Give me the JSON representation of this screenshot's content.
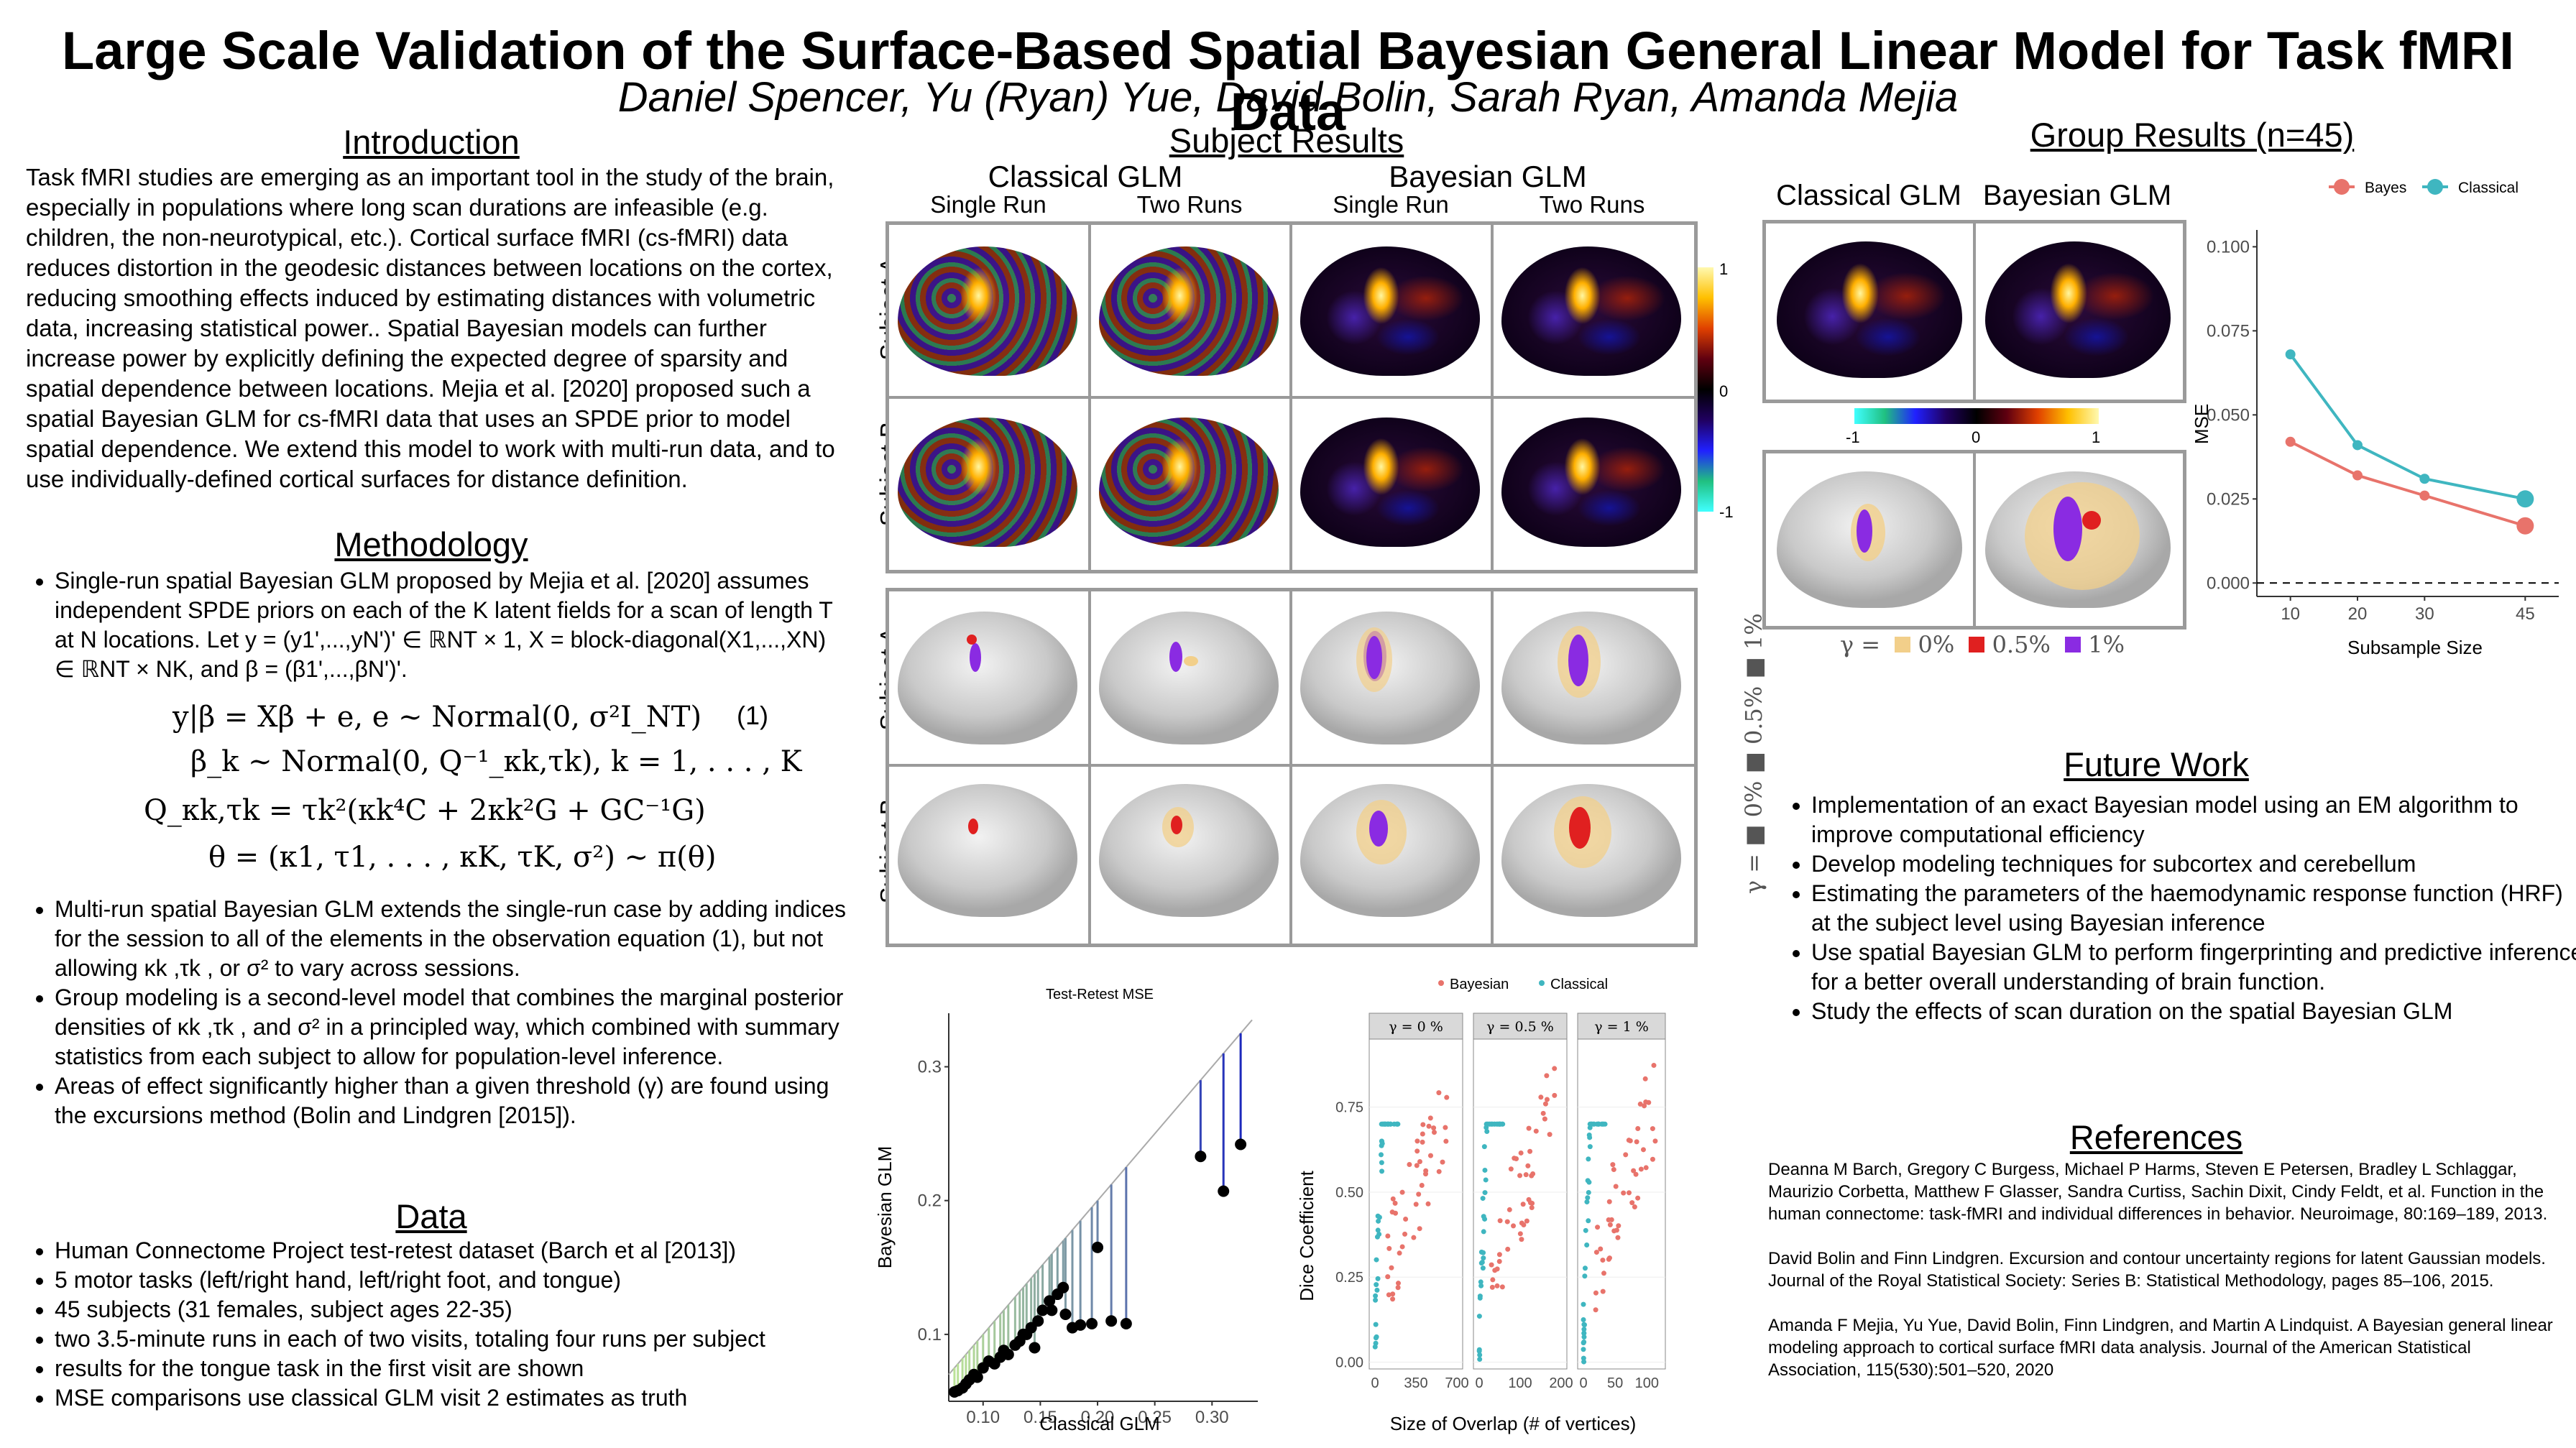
{
  "title": "Large Scale Validation of the Surface-Based Spatial Bayesian General Linear Model for Task fMRI Data",
  "authors": "Daniel Spencer, Yu (Ryan) Yue, David Bolin, Sarah Ryan, Amanda Mejia",
  "introduction": {
    "heading": "Introduction",
    "text": "Task fMRI studies are emerging as an important tool in the study of the brain, especially in populations where long scan durations are infeasible (e.g. children, the non-neurotypical, etc.). Cortical surface fMRI (cs-fMRI) data reduces distortion in the geodesic distances between locations on the cortex, reducing smoothing effects induced by estimating distances with volumetric data, increasing statistical power.. Spatial Bayesian models can further increase power by explicitly defining the expected degree of sparsity and spatial dependence between locations. Mejia et al. [2020] proposed such a spatial Bayesian GLM for cs-fMRI data that uses an SPDE prior to model spatial dependence. We extend this model to work with multi-run data, and to use individually-defined cortical surfaces for distance definition."
  },
  "methodology": {
    "heading": "Methodology",
    "bullet1": "Single-run spatial Bayesian GLM proposed by Mejia et al. [2020] assumes independent SPDE priors on each of the K latent fields for a scan of length T at N locations. Let y = (y1',...,yN')' ∈ ℝNT × 1,  X = block-diagonal(X1,...,XN) ∈ ℝNT × NK, and β = (β1',...,βN')'.",
    "eq1": "y|β = Xβ + e,    e ~ Normal(0, σ²I_NT)",
    "eq1_num": "(1)",
    "eq2": "β_k ~ Normal(0, Q⁻¹_κk,τk),    k = 1, . . . , K",
    "eq3": "Q_κk,τk = τk²(κk⁴C + 2κk²G + GC⁻¹G)",
    "eq4": "θ = (κ1, τ1, . . . , κK, τK, σ²) ~ π(θ)",
    "bullet2": "Multi-run spatial Bayesian GLM extends the single-run case by adding indices for the session to all of the elements in the observation equation (1), but not allowing κk ,τk , or σ² to vary across sessions.",
    "bullet3": "Group modeling is a second-level model that combines the marginal posterior densities of κk ,τk , and σ² in a principled way, which combined with summary statistics from each subject to allow for population-level inference.",
    "bullet4": "Areas of effect significantly higher than a given threshold (γ) are found using the excursions method (Bolin and Lindgren [2015])."
  },
  "data_section": {
    "heading": "Data",
    "items": [
      "Human Connectome Project test-retest dataset (Barch et al [2013])",
      "5 motor tasks (left/right hand, left/right foot, and tongue)",
      "45 subjects (31 females, subject ages 22-35)",
      "two 3.5-minute runs in each of two visits, totaling four runs per subject",
      "results for the tongue task in the first visit are shown",
      "MSE comparisons use classical GLM visit 2 estimates as truth"
    ]
  },
  "subject_results": {
    "heading": "Subject Results",
    "classical": "Classical GLM",
    "bayesian": "Bayesian GLM",
    "single_run": "Single Run",
    "two_runs": "Two Runs",
    "subject_a": "Subject A",
    "subject_b": "Subject B",
    "colorbar_ticks": [
      "1",
      "0",
      "-1"
    ],
    "gamma_legend": "γ =  ■ 0%  ■ 0.5%  ■ 1%"
  },
  "group_results": {
    "heading": "Group Results (n=45)",
    "classical": "Classical GLM",
    "bayesian": "Bayesian GLM",
    "colorbar_ticks": [
      "-1",
      "0",
      "1"
    ],
    "gamma_label": "γ =",
    "gamma_items": [
      "0%",
      "0.5%",
      "1%"
    ],
    "gamma_colors": [
      "#f2cf8a",
      "#e02020",
      "#8a2be2"
    ]
  },
  "future_work": {
    "heading": "Future Work",
    "items": [
      "Implementation of an exact Bayesian model using an EM algorithm to improve computational efficiency",
      "Develop modeling techniques for subcortex and cerebellum",
      "Estimating the parameters of the haemodynamic response function (HRF) at the subject level using Bayesian inference",
      "Use spatial Bayesian GLM to perform fingerprinting and predictive inference for a better overall understanding of brain function.",
      "Study the effects of scan duration on the spatial Bayesian GLM"
    ]
  },
  "references": {
    "heading": "References",
    "items": [
      "Deanna M Barch, Gregory C Burgess, Michael P Harms, Steven E Petersen, Bradley L Schlaggar, Maurizio Corbetta, Matthew F Glasser, Sandra Curtiss, Sachin Dixit, Cindy Feldt, et al. Function in the human connectome: task-fMRI and individual differences in behavior. Neuroimage, 80:169–189, 2013.",
      "David Bolin and Finn Lindgren. Excursion and contour uncertainty regions for latent Gaussian models. Journal of the Royal Statistical Society: Series B: Statistical Methodology, pages 85–106, 2015.",
      "Amanda F Mejia, Yu Yue, David Bolin, Finn Lindgren, and Martin A Lindquist. A Bayesian general linear modeling approach to cortical surface fMRI data analysis. Journal of the American Statistical Association, 115(530):501–520, 2020"
    ]
  },
  "chart_data": [
    {
      "type": "line",
      "legend": [
        "Bayes",
        "Classical"
      ],
      "colors": {
        "Bayes": "#e8736b",
        "Classical": "#3fb6c0"
      },
      "xlabel": "Subsample Size",
      "ylabel": "MSE",
      "x": [
        10,
        20,
        30,
        45
      ],
      "x_ticks": [
        "10",
        "20",
        "30",
        "45"
      ],
      "y_ticks": [
        "0.000",
        "0.025",
        "0.050",
        "0.075",
        "0.100"
      ],
      "ylim": [
        -0.004,
        0.105
      ],
      "series": [
        {
          "name": "Bayes",
          "values": [
            0.042,
            0.032,
            0.026,
            0.017
          ]
        },
        {
          "name": "Classical",
          "values": [
            0.068,
            0.041,
            0.031,
            0.025
          ]
        }
      ],
      "hline": 0.0
    },
    {
      "type": "scatter",
      "title": "Test-Retest MSE",
      "xlabel": "Classical GLM",
      "ylabel": "Bayesian GLM",
      "x_ticks": [
        "0.10",
        "0.15",
        "0.20",
        "0.25",
        "0.30"
      ],
      "y_ticks": [
        "0.1",
        "0.2",
        "0.3"
      ],
      "xlim": [
        0.07,
        0.34
      ],
      "ylim": [
        0.05,
        0.34
      ],
      "points": [
        [
          0.075,
          0.057
        ],
        [
          0.078,
          0.058
        ],
        [
          0.082,
          0.06
        ],
        [
          0.085,
          0.063
        ],
        [
          0.088,
          0.066
        ],
        [
          0.092,
          0.07
        ],
        [
          0.095,
          0.068
        ],
        [
          0.1,
          0.075
        ],
        [
          0.105,
          0.08
        ],
        [
          0.11,
          0.078
        ],
        [
          0.115,
          0.083
        ],
        [
          0.118,
          0.088
        ],
        [
          0.122,
          0.085
        ],
        [
          0.128,
          0.092
        ],
        [
          0.132,
          0.095
        ],
        [
          0.138,
          0.1
        ],
        [
          0.142,
          0.105
        ],
        [
          0.148,
          0.11
        ],
        [
          0.152,
          0.118
        ],
        [
          0.158,
          0.125
        ],
        [
          0.165,
          0.13
        ],
        [
          0.172,
          0.115
        ],
        [
          0.178,
          0.105
        ],
        [
          0.185,
          0.107
        ],
        [
          0.195,
          0.108
        ],
        [
          0.2,
          0.165
        ],
        [
          0.212,
          0.11
        ],
        [
          0.225,
          0.108
        ],
        [
          0.29,
          0.233
        ],
        [
          0.31,
          0.207
        ],
        [
          0.325,
          0.242
        ],
        [
          0.16,
          0.118
        ],
        [
          0.135,
          0.1
        ],
        [
          0.145,
          0.09
        ],
        [
          0.17,
          0.135
        ]
      ]
    },
    {
      "type": "scatter",
      "legend": [
        "Bayesian",
        "Classical"
      ],
      "colors": {
        "Bayesian": "#e8736b",
        "Classical": "#3fb6c0"
      },
      "xlabel": "Size of Overlap (# of vertices)",
      "ylabel": "Dice Coefficient",
      "y_ticks": [
        "0.00",
        "0.25",
        "0.50",
        "0.75"
      ],
      "facets": [
        {
          "label": "γ = 0 %",
          "x_ticks": [
            "0",
            "350",
            "700"
          ],
          "xlim": [
            0,
            700
          ]
        },
        {
          "label": "γ = 0.5 %",
          "x_ticks": [
            "0",
            "100",
            "200"
          ],
          "xlim": [
            0,
            200
          ]
        },
        {
          "label": "γ = 1 %",
          "x_ticks": [
            "0",
            "50",
            "100"
          ],
          "xlim": [
            0,
            120
          ]
        }
      ]
    }
  ]
}
